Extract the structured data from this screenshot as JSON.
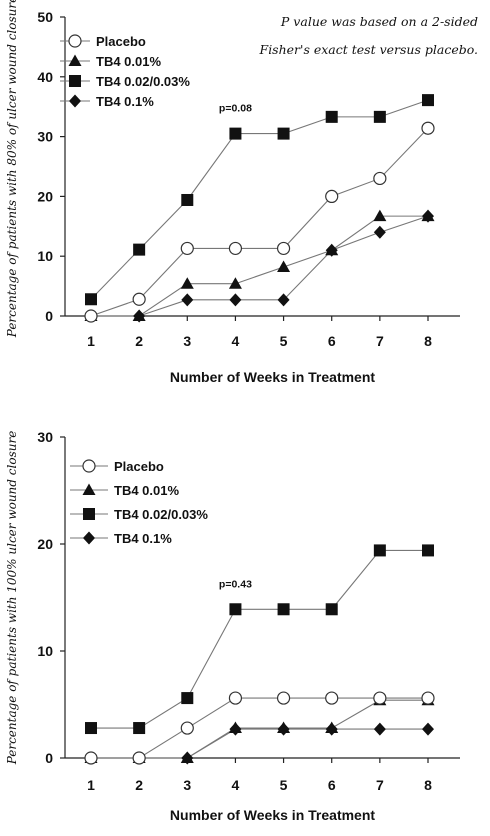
{
  "note": [
    "P value was based on a 2-sided",
    "Fisher's exact test versus placebo."
  ],
  "chart_data": [
    {
      "type": "line",
      "ylabel": "Percentage of patients with 80% of ulcer wound closure",
      "xlabel": "Number of Weeks in Treatment",
      "x": [
        1,
        2,
        3,
        4,
        5,
        6,
        7,
        8
      ],
      "ylim": [
        0,
        50
      ],
      "yticks": [
        0,
        10,
        20,
        30,
        40,
        50
      ],
      "annotation": {
        "text": "p=0.08",
        "x": 4,
        "y": 30.5
      },
      "series": [
        {
          "name": "Placebo",
          "marker": "circle-open",
          "values": [
            0,
            2.8,
            11.3,
            11.3,
            11.3,
            20,
            23,
            31.4
          ]
        },
        {
          "name": "TB4 0.01%",
          "marker": "triangle",
          "values": [
            0,
            0,
            5.4,
            5.4,
            8.2,
            11,
            16.7,
            16.7
          ]
        },
        {
          "name": "TB4 0.02/0.03%",
          "marker": "square",
          "values": [
            2.8,
            11.1,
            19.4,
            30.5,
            30.5,
            33.3,
            33.3,
            36.1
          ]
        },
        {
          "name": "TB4 0.1%",
          "marker": "diamond",
          "values": [
            0,
            0,
            2.7,
            2.7,
            2.7,
            11,
            14,
            16.7
          ]
        }
      ]
    },
    {
      "type": "line",
      "ylabel": "Percentage of patients with 100% ulcer wound closure",
      "xlabel": "Number of Weeks in Treatment",
      "x": [
        1,
        2,
        3,
        4,
        5,
        6,
        7,
        8
      ],
      "ylim": [
        0,
        30
      ],
      "yticks": [
        0,
        10,
        20,
        30
      ],
      "annotation": {
        "text": "p=0.43",
        "x": 4,
        "y": 13.9
      },
      "series": [
        {
          "name": "Placebo",
          "marker": "circle-open",
          "values": [
            0,
            0,
            2.8,
            5.6,
            5.6,
            5.6,
            5.6,
            5.6
          ]
        },
        {
          "name": "TB4 0.01%",
          "marker": "triangle",
          "values": [
            0,
            0,
            0,
            2.8,
            2.8,
            2.8,
            5.4,
            5.4
          ]
        },
        {
          "name": "TB4 0.02/0.03%",
          "marker": "square",
          "values": [
            2.8,
            2.8,
            5.6,
            13.9,
            13.9,
            13.9,
            19.4,
            19.4
          ]
        },
        {
          "name": "TB4 0.1%",
          "marker": "diamond",
          "values": [
            0,
            0,
            0,
            2.7,
            2.7,
            2.7,
            2.7,
            2.7
          ]
        }
      ]
    }
  ]
}
